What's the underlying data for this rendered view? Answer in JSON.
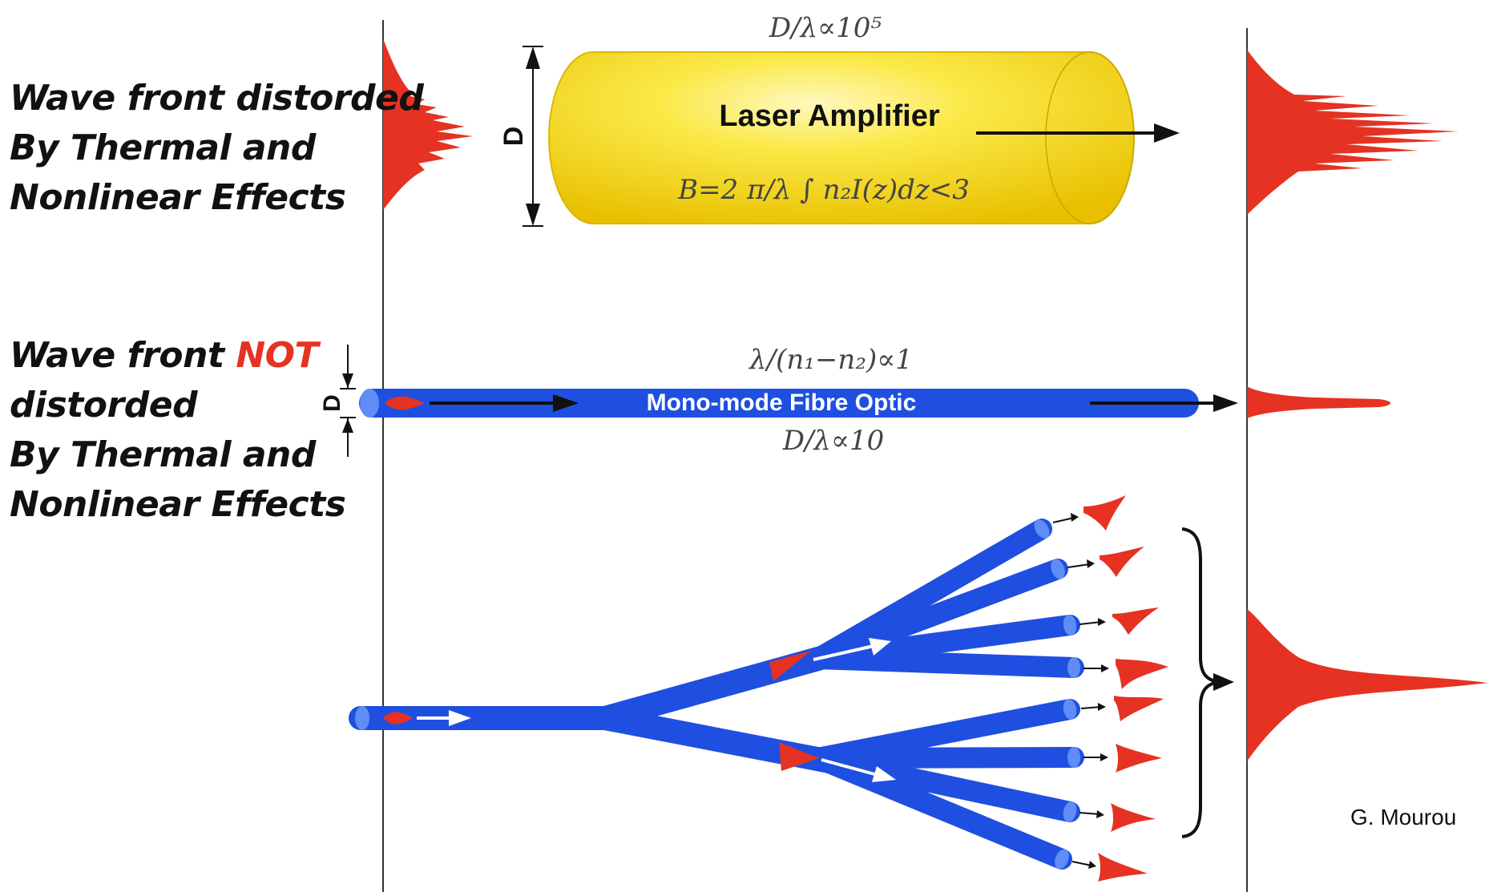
{
  "left_labels": {
    "distorded": {
      "line1": "Wave front distorded",
      "line2": "By Thermal  and",
      "line3": "Nonlinear Effects"
    },
    "not_distorded": {
      "line1_prefix": "Wave front ",
      "line1_highlight": "NOT",
      "line2": "distorded",
      "line3": "By Thermal  and",
      "line4": "Nonlinear Effects"
    }
  },
  "amplifier": {
    "label": "Laser Amplifier",
    "top_formula": "D/λ∝10⁵",
    "b_integral": "B=2 π/λ ∫ n₂I(z)dz<3",
    "dimension_label": "D"
  },
  "fibre": {
    "label": "Mono-mode Fibre Optic",
    "top_formula": "λ/(n₁−n₂)∝1",
    "bottom_formula": "D/λ∝10",
    "dimension_label": "D"
  },
  "credit": "G. Mourou",
  "colors": {
    "pulse_red": "#e53222",
    "fibre_blue": "#1f4fe0",
    "amplifier_yellow": "#f7e02a",
    "highlight_red": "#e53222"
  }
}
